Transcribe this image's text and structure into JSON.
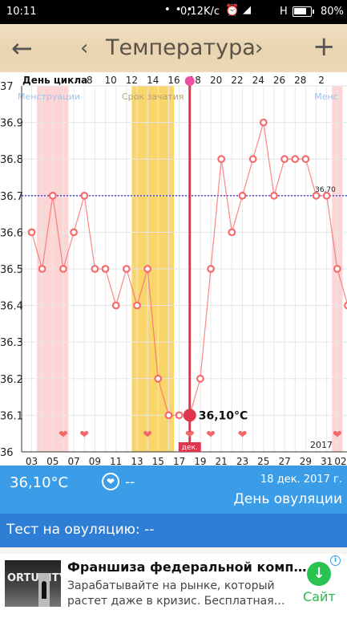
{
  "status_bar": {
    "time": "10:11",
    "notification_dots": "• • •",
    "speed": "0,12K/c",
    "network": "H",
    "battery": "80%",
    "battery_level": 0.8
  },
  "app_bar": {
    "back_glyph": "←",
    "prev_glyph": "‹",
    "title": "Температура",
    "next_glyph": "›",
    "add_glyph": "+"
  },
  "chart_data": {
    "type": "line",
    "top_axis_label": "День цикла",
    "cycle_day_ticks": [
      {
        "date": 8.5,
        "label": "8"
      },
      {
        "date": 10.5,
        "label": "10"
      },
      {
        "date": 12.5,
        "label": "12"
      },
      {
        "date": 14.5,
        "label": "14"
      },
      {
        "date": 16.5,
        "label": "16"
      },
      {
        "date": 18.5,
        "label": "18"
      },
      {
        "date": 20.5,
        "label": "20"
      },
      {
        "date": 22.5,
        "label": "22"
      },
      {
        "date": 24.5,
        "label": "24"
      },
      {
        "date": 26.5,
        "label": "26"
      },
      {
        "date": 28.5,
        "label": "28"
      },
      {
        "date": 30.5,
        "label": "2"
      }
    ],
    "x_ticks": [
      "03",
      "05",
      "07",
      "09",
      "11",
      "13",
      "15",
      "17",
      "19",
      "21",
      "23",
      "25",
      "27",
      "29",
      "31",
      "02"
    ],
    "y_ticks": [
      "37",
      "36.9",
      "36.8",
      "36.7",
      "36.6",
      "36.5",
      "36.4",
      "36.3",
      "36.2",
      "36.1",
      "36"
    ],
    "ylim": [
      36,
      37
    ],
    "x_range": [
      2.5,
      32.5
    ],
    "bands": [
      {
        "label": "Менструации",
        "from": 3.5,
        "to": 6.5,
        "color": "#fdd5d5"
      },
      {
        "label": "Срок зачатия",
        "from": 12.5,
        "to": 16.5,
        "color": "#fad56a"
      },
      {
        "label": "Менс",
        "from": 31.5,
        "to": 32.5,
        "color": "#fdd5d5"
      }
    ],
    "series": [
      {
        "color": "#f56b6b",
        "points": [
          [
            3,
            36.6
          ],
          [
            4,
            36.5
          ],
          [
            5,
            36.7
          ],
          [
            6,
            36.5
          ],
          [
            7,
            36.6
          ],
          [
            8,
            36.7
          ],
          [
            9,
            36.5
          ],
          [
            10,
            36.5
          ],
          [
            11,
            36.4
          ],
          [
            12,
            36.5
          ],
          [
            13,
            36.4
          ],
          [
            14,
            36.5
          ],
          [
            15,
            36.2
          ],
          [
            16,
            36.1
          ],
          [
            17,
            36.1
          ],
          [
            18,
            36.1
          ],
          [
            19,
            36.2
          ],
          [
            20,
            36.5
          ],
          [
            21,
            36.8
          ],
          [
            22,
            36.6
          ],
          [
            23,
            36.7
          ],
          [
            24,
            36.8
          ],
          [
            25,
            36.9
          ],
          [
            26,
            36.7
          ],
          [
            27,
            36.8
          ],
          [
            28,
            36.8
          ],
          [
            29,
            36.8
          ],
          [
            30,
            36.7
          ],
          [
            31,
            36.7
          ],
          [
            32,
            36.5
          ],
          [
            33,
            36.4
          ]
        ]
      }
    ],
    "reference_line": {
      "value": 36.7,
      "label": "36,70",
      "color": "#1a1acc"
    },
    "selected": {
      "date": 18,
      "value": 36.1,
      "label": "36,10°C",
      "month_label": "дек."
    },
    "heart_days": [
      6,
      8,
      14,
      18,
      20,
      23,
      32
    ],
    "year_label": "2017",
    "grid": true
  },
  "info_bar": {
    "temperature": "36,10°C",
    "heart_glyph": "❤",
    "dash": "--",
    "date": "18 дек. 2017 г.",
    "day_name": "День овуляции"
  },
  "test_bar": {
    "text": "Тест на овуляцию: --"
  },
  "ad": {
    "thumb_word": "ORTUNITY",
    "headline": "Франшиза федеральной комп…",
    "body_line1": "Зарабатывайте на рынке, который",
    "body_line2": "растет даже в кризис. Бесплатная…",
    "info_glyph": "i",
    "download_glyph": "↓",
    "cta": "Сайт"
  }
}
